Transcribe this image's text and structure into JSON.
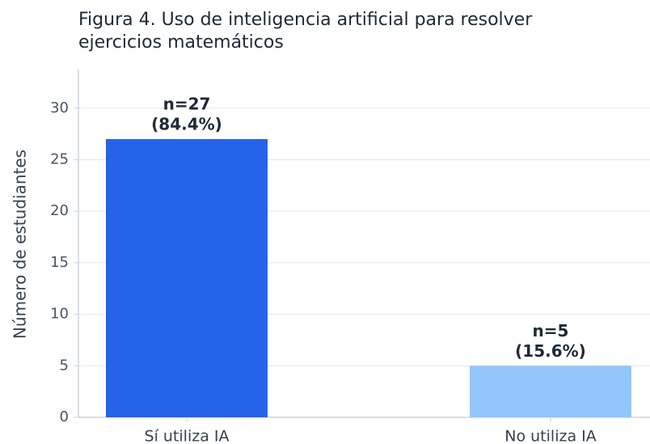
{
  "chart_data": {
    "type": "bar",
    "title": [
      "Figura 4. Uso de inteligencia artificial para resolver",
      "ejercicios matemáticos"
    ],
    "ylabel": "Número de estudiantes",
    "categories": [
      "Sí utiliza IA",
      "No utiliza IA"
    ],
    "values": [
      27,
      5
    ],
    "value_labels": [
      "n=27",
      "n=5"
    ],
    "percent_labels": [
      "(84.4%)",
      "(15.6%)"
    ],
    "colors": [
      "#2563eb",
      "#93c5fd"
    ],
    "ylim": [
      0,
      33.75
    ],
    "yticks": [
      0,
      5,
      10,
      15,
      20,
      25,
      30
    ],
    "grid": true
  }
}
